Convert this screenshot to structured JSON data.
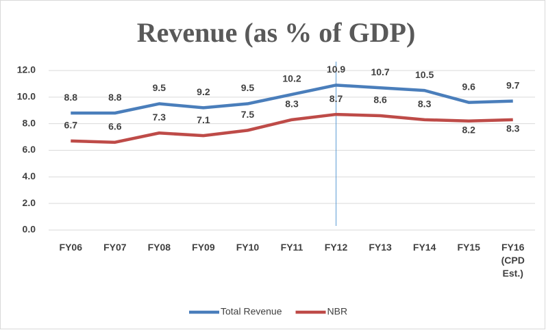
{
  "chart_data": {
    "type": "line",
    "title": "Revenue (as % of GDP)",
    "categories": [
      "FY06",
      "FY07",
      "FY08",
      "FY09",
      "FY10",
      "FY11",
      "FY12",
      "FY13",
      "FY14",
      "FY15",
      "FY16 (CPD Est.)"
    ],
    "series": [
      {
        "name": "Total Revenue",
        "color": "#4a7ebb",
        "values": [
          8.8,
          8.8,
          9.5,
          9.2,
          9.5,
          10.2,
          10.9,
          10.7,
          10.5,
          9.6,
          9.7
        ]
      },
      {
        "name": "NBR",
        "color": "#be4b48",
        "values": [
          6.7,
          6.6,
          7.3,
          7.1,
          7.5,
          8.3,
          8.7,
          8.6,
          8.3,
          8.2,
          8.3
        ]
      }
    ],
    "ylim": [
      0,
      12
    ],
    "yticks": [
      {
        "value": 0,
        "label": "0.0"
      },
      {
        "value": 2,
        "label": "2.0"
      },
      {
        "value": 4,
        "label": "4.0"
      },
      {
        "value": 6,
        "label": "6.0"
      },
      {
        "value": 8,
        "label": "8.0"
      },
      {
        "value": 10,
        "label": "10.0"
      },
      {
        "value": 12,
        "label": "12.0"
      }
    ],
    "grid": true,
    "legend": "bottom"
  }
}
